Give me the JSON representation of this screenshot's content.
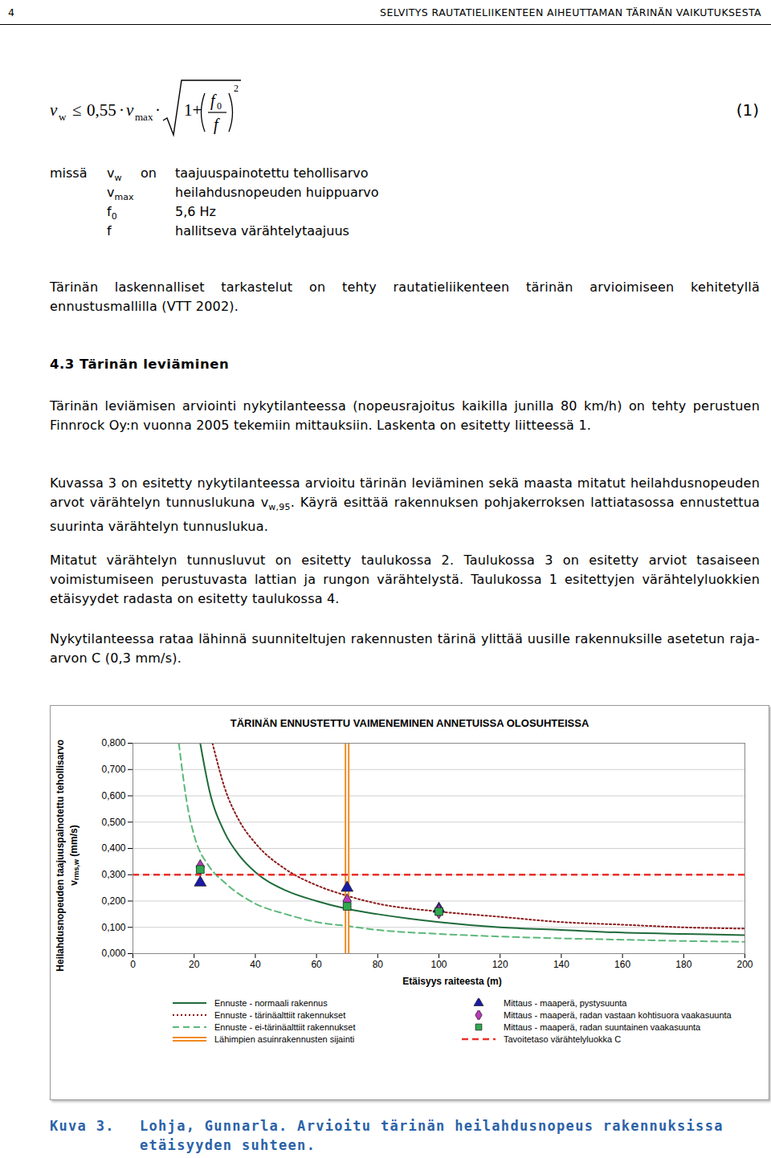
{
  "header": {
    "page_number": "4",
    "title": "SELVITYS RAUTATIELIIKENTEEN AIHEUTTAMAN TÄRINÄN VAIKUTUKSESTA"
  },
  "formula": {
    "lhs": "v",
    "lhs_sub": "w",
    "relation": "≤",
    "coefficient": "0,55",
    "dot": "·",
    "vmax": "v",
    "vmax_sub": "max",
    "one_plus": "1+",
    "numerator": "f",
    "numerator_sub": "0",
    "denominator": "f",
    "exponent": "2",
    "number": "(1)"
  },
  "definitions": {
    "lead": "missä",
    "rows": [
      {
        "symbol": "v",
        "sub": "w",
        "verb": "on",
        "text": "taajuuspainotettu tehollisarvo"
      },
      {
        "symbol": "v",
        "sub": "max",
        "text": "heilahdusnopeuden huippuarvo"
      },
      {
        "symbol": "f",
        "sub": "0",
        "text": "5,6 Hz"
      },
      {
        "symbol": "f",
        "text": "hallitseva värähtelytaajuus"
      }
    ]
  },
  "body": {
    "paragraph_1": [
      "Tärinän laskennalliset tarkastelut on tehty rautatieliikenteen tärinän arvioimiseen kehitetyllä ennustusmallilla (VTT 2002)."
    ],
    "heading": {
      "number": "4.3",
      "text": "Tärinän leviäminen"
    },
    "paragraph_2": [
      "Tärinän leviämisen arviointi nykytilanteessa (nopeusrajoitus kaikilla junilla 80 km/h) on tehty perustuen Finnrock Oy:n vuonna 2005 tekemiin mittauksiin. Laskenta on esitetty liitteessä 1."
    ],
    "paragraph_3": [
      "Kuvassa 3 on esitetty nykytilanteessa arvioitu tärinän leviäminen sekä maasta mitatut heilahdusnopeuden arvot värähtelyn tunnuslukuna v",
      {
        "sub": "w,95"
      },
      ". Käyrä esittää rakennuksen pohjakerroksen lattiatasossa ennustettua suurinta värähtelyn tunnuslukua."
    ],
    "paragraph_4": [
      "Mitatut värähtelyn tunnusluvut on esitetty taulukossa 2. Taulukossa 3 on esitetty arviot tasaiseen voimistumiseen perustuvasta lattian ja rungon värähtelystä. Taulukossa 1 esitettyjen värähtelyluokkien etäisyydet radasta on esitetty taulukossa 4."
    ],
    "paragraph_5": [
      "Nykytilanteessa rataa lähinnä suunniteltujen rakennusten tärinä ylittää uusille rakennuksille asetetun raja-arvon C (0,3 mm/s)."
    ]
  },
  "chart_data": {
    "type": "line",
    "title": "TÄRINÄN ENNUSTETTU VAIMENEMINEN ANNETUISSA OLOSUHTEISSA",
    "xlabel": "Etäisyys raiteesta (m)",
    "ylabel": {
      "text": "Heilahdusnopeuden taajuuspainotettu tehollisarvo",
      "symbol": "v",
      "subscript": "rms,w",
      "unit": "(mm/s)"
    },
    "xlim": [
      0,
      200
    ],
    "xticks": [
      0,
      20,
      40,
      60,
      80,
      100,
      120,
      140,
      160,
      180,
      200
    ],
    "ylim": [
      0,
      0.8
    ],
    "yticks": [
      {
        "value": 0,
        "label": "0,000"
      },
      {
        "value": 0.1,
        "label": "0,100"
      },
      {
        "value": 0.2,
        "label": "0,200"
      },
      {
        "value": 0.3,
        "label": "0,300"
      },
      {
        "value": 0.4,
        "label": "0,400"
      },
      {
        "value": 0.5,
        "label": "0,500"
      },
      {
        "value": 0.6,
        "label": "0,600"
      },
      {
        "value": 0.7,
        "label": "0,700"
      },
      {
        "value": 0.8,
        "label": "0,800"
      }
    ],
    "grid": true,
    "series": [
      {
        "name": "Ennuste - normaali rakennus",
        "type": "line",
        "color": "#1f6b3a",
        "line_style": "solid",
        "x": [
          22,
          25,
          30,
          35,
          40,
          50,
          60,
          70,
          80,
          100,
          120,
          140,
          160,
          180,
          200
        ],
        "values": [
          0.8,
          0.62,
          0.46,
          0.37,
          0.31,
          0.24,
          0.2,
          0.17,
          0.15,
          0.12,
          0.1,
          0.09,
          0.08,
          0.075,
          0.07
        ]
      },
      {
        "name": "Ennuste - tärinäalttiit rakennukset",
        "type": "line",
        "color": "#8b1a1a",
        "line_style": "dotted",
        "x": [
          26,
          30,
          35,
          40,
          50,
          60,
          70,
          80,
          100,
          120,
          140,
          160,
          180,
          200
        ],
        "values": [
          0.8,
          0.63,
          0.5,
          0.42,
          0.32,
          0.26,
          0.22,
          0.19,
          0.16,
          0.14,
          0.12,
          0.11,
          0.1,
          0.095
        ]
      },
      {
        "name": "Ennuste - ei-tärinäalttiit rakennukset",
        "type": "line",
        "color": "#5cb87a",
        "line_style": "dashed",
        "x": [
          15,
          18,
          20,
          25,
          30,
          40,
          50,
          60,
          70,
          80,
          100,
          120,
          140,
          160,
          180,
          200
        ],
        "values": [
          0.8,
          0.55,
          0.45,
          0.33,
          0.27,
          0.19,
          0.15,
          0.12,
          0.105,
          0.09,
          0.075,
          0.065,
          0.058,
          0.053,
          0.048,
          0.045
        ]
      },
      {
        "name": "Lähimpien asuinrakennusten sijainti",
        "type": "vline",
        "color": "#f08a24",
        "line_style": "double",
        "x": [
          70
        ]
      },
      {
        "name": "Mittaus - maaperä, pystysuunta",
        "type": "scatter",
        "color": "#1a1aa6",
        "marker": "triangle",
        "x": [
          22,
          70,
          100
        ],
        "values": [
          0.27,
          0.25,
          0.17
        ]
      },
      {
        "name": "Mittaus - maaperä, radan vastaan kohtisuora vaakasuunta",
        "type": "scatter",
        "color": "#b83ab8",
        "marker": "diamond",
        "x": [
          22,
          70,
          100
        ],
        "values": [
          0.33,
          0.2,
          0.16
        ]
      },
      {
        "name": "Mittaus - maaperä, radan suuntainen vaakasuunta",
        "type": "scatter",
        "color": "#2fa84f",
        "marker": "square",
        "x": [
          22,
          70,
          100
        ],
        "values": [
          0.32,
          0.18,
          0.16
        ]
      },
      {
        "name": "Tavoitetaso värähtelyluokka C",
        "type": "hline",
        "color": "#e8302a",
        "line_style": "dashed",
        "values": [
          0.3
        ]
      }
    ]
  },
  "caption": {
    "label": "Kuva 3.",
    "text": "Lohja, Gunnarla. Arvioitu tärinän heilahdusnopeus rakennuksissa etäisyyden suhteen."
  }
}
